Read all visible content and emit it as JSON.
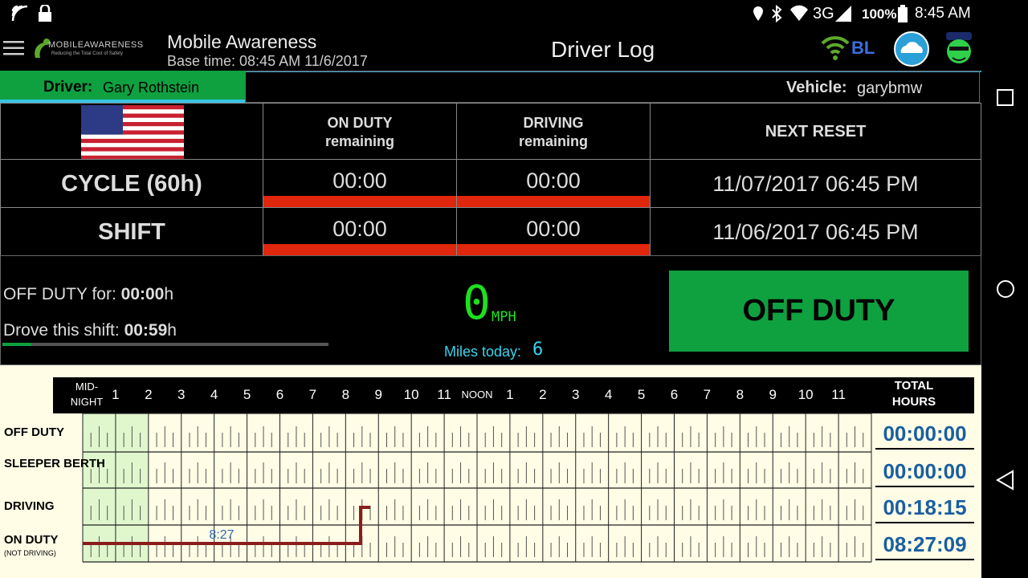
{
  "status_bar": {
    "network": "3G",
    "battery": "100%",
    "time": "8:45 AM"
  },
  "app_bar": {
    "logo": "MOBILEAWARENESS",
    "logo_tagline": "Reducing the Total Cost of Safety",
    "app_name": "Mobile Awareness",
    "base_time": "Base time: 08:45 AM 11/6/2017",
    "title": "Driver Log",
    "connection": "BL"
  },
  "driver": {
    "label": "Driver:",
    "name": "Gary Rothstein"
  },
  "vehicle": {
    "label": "Vehicle:",
    "name": "garybmw"
  },
  "hours_table": {
    "columns": [
      {
        "title": "ON DUTY",
        "subtitle": "remaining"
      },
      {
        "title": "DRIVING",
        "subtitle": "remaining"
      },
      {
        "title": "NEXT RESET"
      }
    ],
    "rows": [
      {
        "label": "CYCLE (60h)",
        "on_duty": "00:00",
        "driving": "00:00",
        "next_reset": "11/07/2017 06:45 PM"
      },
      {
        "label": "SHIFT",
        "on_duty": "00:00",
        "driving": "00:00",
        "next_reset": "11/06/2017 06:45 PM"
      }
    ]
  },
  "summary": {
    "off_duty_label": "OFF DUTY for:",
    "off_duty_value": "00:00",
    "off_duty_unit": "h",
    "drove_label": "Drove this shift:",
    "drove_value": "00:59",
    "drove_unit": "h",
    "speed": "0",
    "speed_unit": "MPH",
    "miles_label": "Miles today:",
    "miles": "6",
    "status_button": "OFF DUTY"
  },
  "log_grid": {
    "hour_labels": [
      "MID-NIGHT",
      "1",
      "2",
      "3",
      "4",
      "5",
      "6",
      "7",
      "8",
      "9",
      "10",
      "11",
      "NOON",
      "1",
      "2",
      "3",
      "4",
      "5",
      "6",
      "7",
      "8",
      "9",
      "10",
      "11"
    ],
    "total_label": "TOTAL HOURS",
    "rows": [
      {
        "label": "OFF DUTY",
        "total": "00:00:00"
      },
      {
        "label": "SLEEPER BERTH",
        "total": "00:00:00"
      },
      {
        "label": "DRIVING",
        "total": "00:18:15"
      },
      {
        "label": "ON DUTY",
        "sublabel": "(NOT DRIVING)",
        "total": "08:27:09"
      }
    ],
    "annotation": "8:27"
  }
}
